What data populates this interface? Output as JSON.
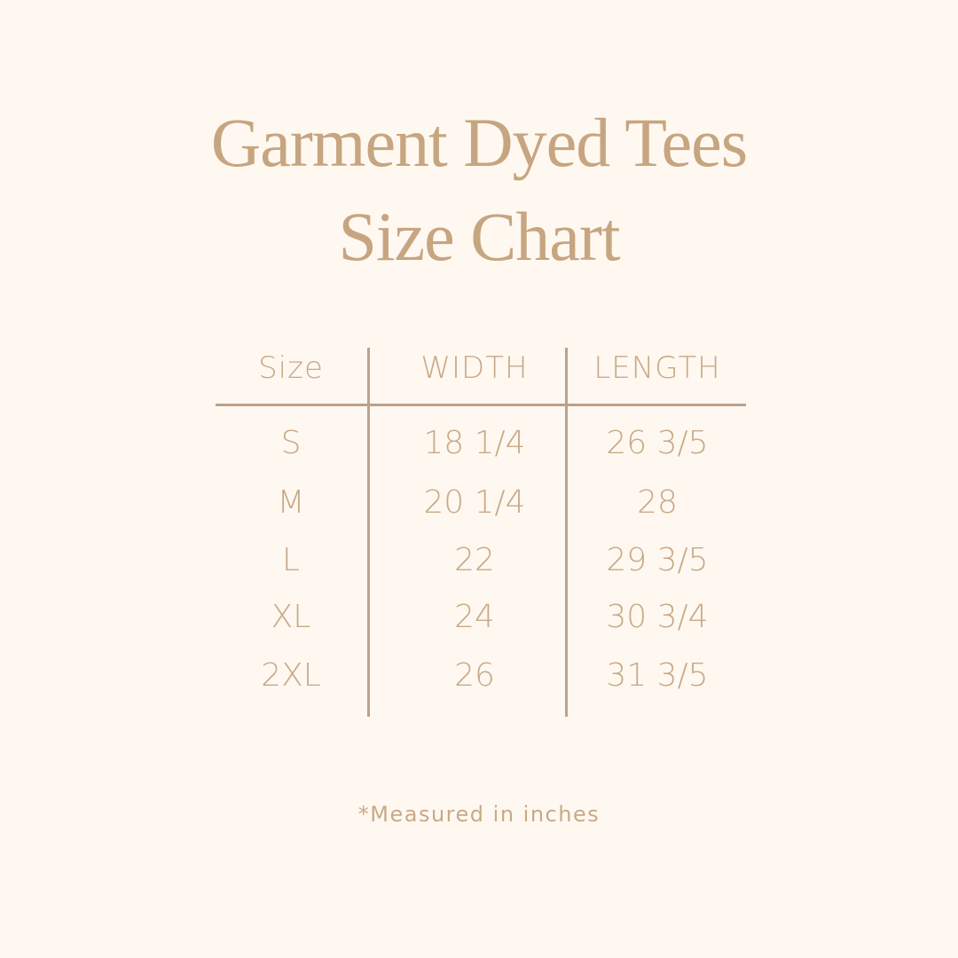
{
  "title": {
    "line1": "Garment Dyed Tees",
    "line2": "Size Chart"
  },
  "table": {
    "headers": [
      "Size",
      "WIDTH",
      "LENGTH"
    ],
    "rows": [
      [
        "S",
        "18 1/4",
        "26 3/5"
      ],
      [
        "M",
        "20 1/4",
        "28"
      ],
      [
        "L",
        "22",
        "29 3/5"
      ],
      [
        "XL",
        "24",
        "30 3/4"
      ],
      [
        "2XL",
        "26",
        "31 3/5"
      ]
    ]
  },
  "footnote": "*Measured in inches",
  "colors": {
    "background": "#fef8f0",
    "text": "#c9a987",
    "rules": "#bba28b"
  }
}
